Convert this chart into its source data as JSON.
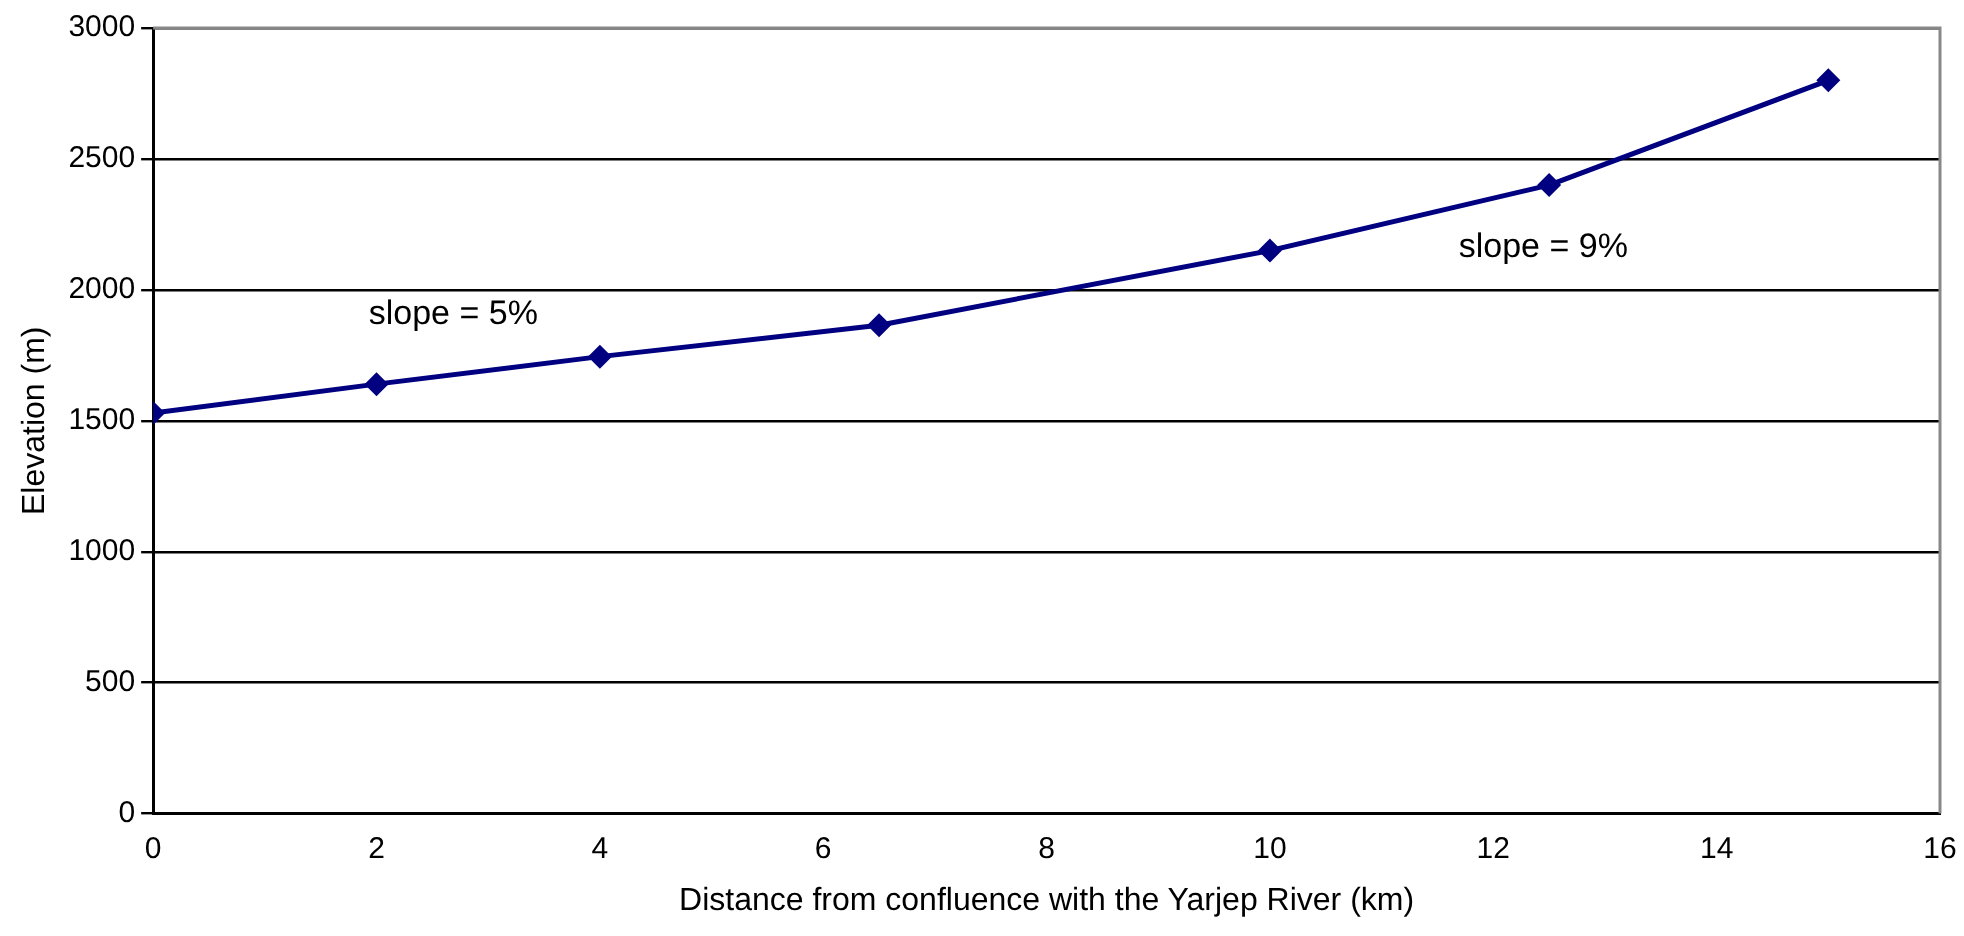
{
  "chart_data": {
    "type": "line",
    "xlabel": "Distance from confluence with the Yarjep River (km)",
    "ylabel": "Elevation (m)",
    "x": [
      0,
      2,
      4,
      6.5,
      10,
      12.5,
      15
    ],
    "series": [
      {
        "color": "#000080",
        "values": [
          1530,
          1640,
          1745,
          1865,
          2150,
          2400,
          2800
        ]
      }
    ],
    "xlim": [
      0,
      16
    ],
    "xticks": [
      0,
      2,
      4,
      6,
      8,
      10,
      12,
      14,
      16
    ],
    "ylim": [
      0,
      3000
    ],
    "yticks": [
      0,
      500,
      1000,
      1500,
      2000,
      2500,
      3000
    ],
    "grid": "y",
    "legend": false,
    "marker": "diamond",
    "line_style": "solid",
    "annotations": [
      "slope = 5%",
      "slope = 9%"
    ]
  }
}
